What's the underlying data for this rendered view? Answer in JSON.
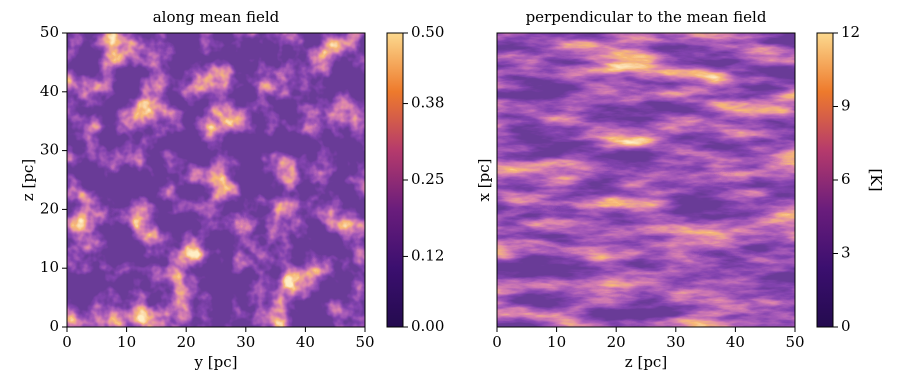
{
  "chart_data": [
    {
      "type": "heatmap",
      "title": "along mean field",
      "xlabel": "y [pc]",
      "ylabel": "z [pc]",
      "xlim": [
        0,
        50
      ],
      "ylim": [
        0,
        50
      ],
      "xticks": [
        0,
        10,
        20,
        30,
        40,
        50
      ],
      "yticks": [
        0,
        10,
        20,
        30,
        40,
        50
      ],
      "colormap": [
        "#240b4f",
        "#3b0f6f",
        "#6a1d7c",
        "#b53a6c",
        "#ee7a2c",
        "#fcd98e"
      ],
      "colorbar": {
        "lim": [
          0,
          0.5
        ],
        "ticks": [
          {
            "value": 0,
            "label": "0.00"
          },
          0.12,
          0.25,
          0.38,
          {
            "value": 0.5,
            "label": "0.50"
          }
        ]
      }
    },
    {
      "type": "heatmap",
      "title": "perpendicular to the mean field",
      "xlabel": "z [pc]",
      "ylabel": "x [pc]",
      "xlim": [
        0,
        50
      ],
      "ylim": [
        0,
        50
      ],
      "xticks": [
        0,
        10,
        20,
        30,
        40,
        50
      ],
      "colormap": [
        "#240b4f",
        "#3b0f6f",
        "#6a1d7c",
        "#b53a6c",
        "#ee7a2c",
        "#fcd98e"
      ],
      "colorbar": {
        "lim": [
          0,
          12
        ],
        "ticks": [
          0,
          3,
          6,
          9,
          12
        ],
        "label": "[K]"
      }
    }
  ]
}
